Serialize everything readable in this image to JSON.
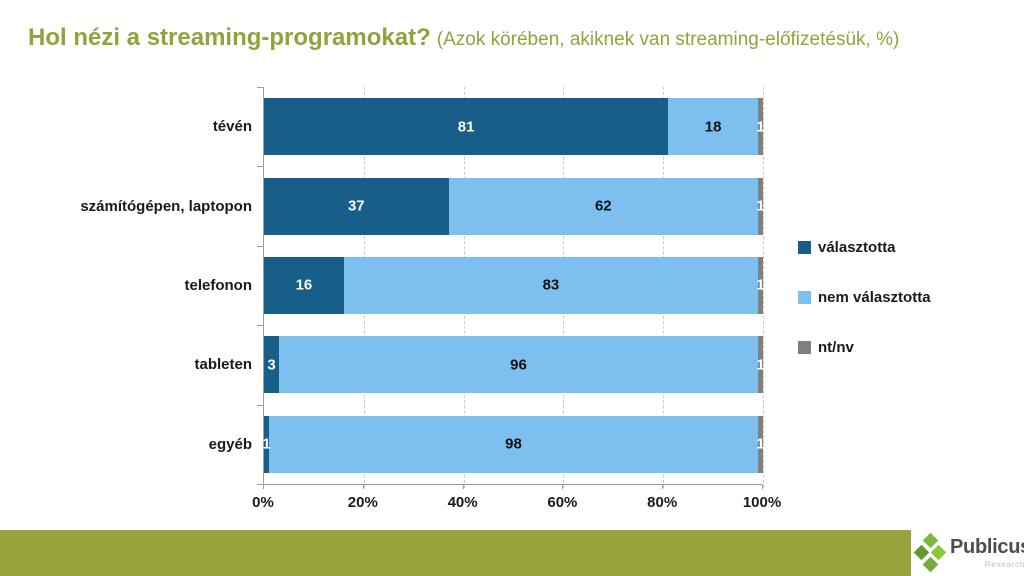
{
  "header": {
    "title": "Hol nézi a streaming-programokat?",
    "subtitle": "(Azok körében, akiknek van streaming-előfizetésük, %)"
  },
  "chart_data": {
    "type": "bar",
    "orientation": "horizontal",
    "stacked": true,
    "title": "Hol nézi a streaming-programokat?",
    "subtitle": "(Azok körében, akiknek van streaming-előfizetésük, %)",
    "categories": [
      "tévén",
      "számítógépen, laptopon",
      "telefonon",
      "tableten",
      "egyéb"
    ],
    "series": [
      {
        "name": "választotta",
        "color": "#175F88",
        "label_color": "#ffffff",
        "values": [
          81,
          37,
          16,
          3,
          1
        ]
      },
      {
        "name": "nem választotta",
        "color": "#7DC0EF",
        "label_color": "#111111",
        "values": [
          18,
          62,
          83,
          96,
          98
        ]
      },
      {
        "name": "nt/nv",
        "color": "#808080",
        "label_color": "#ffffff",
        "values": [
          1,
          1,
          1,
          1,
          1
        ]
      }
    ],
    "x_axis": {
      "min": 0,
      "max": 100,
      "tick_values": [
        0,
        20,
        40,
        60,
        80,
        100
      ],
      "tick_labels": [
        "0%",
        "20%",
        "40%",
        "60%",
        "80%",
        "100%"
      ]
    },
    "legend": {
      "position": "right",
      "items": [
        "választotta",
        "nem választotta",
        "nt/nv"
      ]
    },
    "grid": "dashed-vertical"
  },
  "colors": {
    "title_green": "#93A23B",
    "footer_band": "#98A33C",
    "axis_gray": "#9e9e9e"
  },
  "footer": {
    "band_color": "#98A33C",
    "brand": "Publicus",
    "brand_sub": "Research",
    "logo_diamond_colors": [
      "#7FB640",
      "#619A33",
      "#8CC63F",
      "#76AC3B"
    ]
  }
}
